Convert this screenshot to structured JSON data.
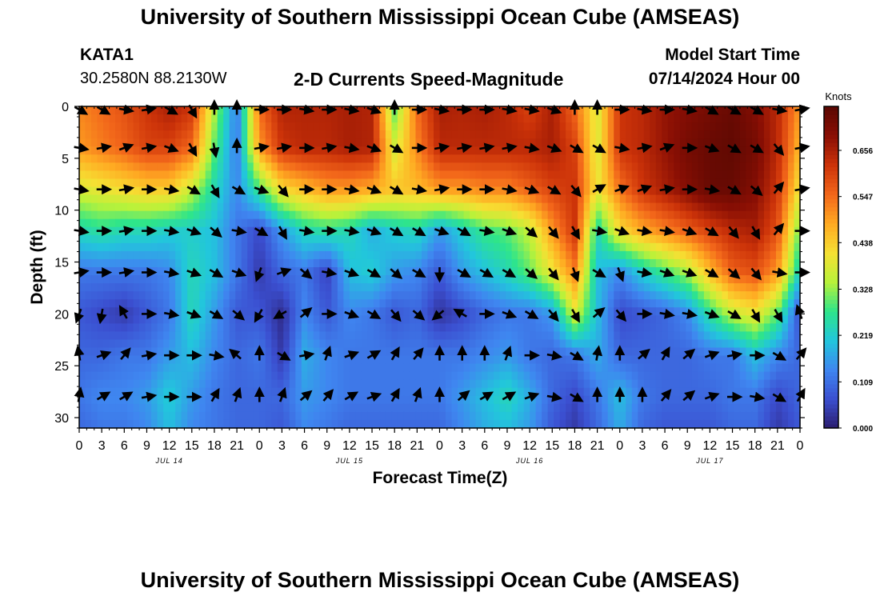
{
  "header": {
    "title_top": "University of Southern Mississippi Ocean Cube (AMSEAS)",
    "title_bottom": "University of Southern Mississippi Ocean Cube (AMSEAS)",
    "station_id": "KATA1",
    "coordinates": "30.2580N  88.2130W",
    "plot_title": "2-D Currents Speed-Magnitude",
    "model_start_label": "Model Start Time",
    "model_start_value": "07/14/2024 Hour 00"
  },
  "colors": {
    "palette": [
      "#2b1d6e",
      "#3b4fd0",
      "#3f86f0",
      "#22c6dc",
      "#2ee58a",
      "#b8f23a",
      "#f6e033",
      "#ffaa22",
      "#f2661a",
      "#cc3309",
      "#8a0f04",
      "#5a0802"
    ]
  },
  "chart_data": {
    "type": "heatmap",
    "title": "2-D Currents Speed-Magnitude",
    "xlabel": "Forecast Time(Z)",
    "ylabel": "Depth (ft)",
    "x_ticks": [
      "0",
      "3",
      "6",
      "9",
      "12",
      "15",
      "18",
      "21",
      "0",
      "3",
      "6",
      "9",
      "12",
      "15",
      "18",
      "21",
      "0",
      "3",
      "6",
      "9",
      "12",
      "15",
      "18",
      "21",
      "0",
      "3",
      "6",
      "9",
      "12",
      "15",
      "18",
      "21",
      "0"
    ],
    "x_range_hours": [
      0,
      96
    ],
    "day_labels": [
      {
        "label": "JUL 14",
        "hour": 12
      },
      {
        "label": "JUL 15",
        "hour": 36
      },
      {
        "label": "JUL 16",
        "hour": 60
      },
      {
        "label": "JUL 17",
        "hour": 84
      }
    ],
    "y_ticks": [
      "0",
      "5",
      "10",
      "15",
      "20",
      "25",
      "30"
    ],
    "y_range": [
      0,
      31
    ],
    "colorbar": {
      "label": "Knots",
      "ticks": [
        "0.000",
        "0.109",
        "0.219",
        "0.328",
        "0.438",
        "0.547",
        "0.656"
      ],
      "range": [
        0,
        0.76
      ]
    },
    "depths_ft": [
      0,
      4,
      8,
      12,
      16,
      20,
      24,
      28,
      31
    ],
    "speed_knots": [
      [
        0.52,
        0.55,
        0.58,
        0.62,
        0.66,
        0.62,
        0.35,
        0.12,
        0.55,
        0.65,
        0.65,
        0.65,
        0.66,
        0.65,
        0.3,
        0.55,
        0.66,
        0.65,
        0.66,
        0.64,
        0.6,
        0.66,
        0.55,
        0.38,
        0.62,
        0.64,
        0.68,
        0.7,
        0.72,
        0.74,
        0.7,
        0.64,
        0.5
      ],
      [
        0.5,
        0.53,
        0.56,
        0.6,
        0.6,
        0.55,
        0.3,
        0.12,
        0.5,
        0.62,
        0.64,
        0.64,
        0.66,
        0.65,
        0.38,
        0.52,
        0.64,
        0.64,
        0.64,
        0.64,
        0.64,
        0.66,
        0.6,
        0.38,
        0.62,
        0.64,
        0.68,
        0.72,
        0.74,
        0.75,
        0.72,
        0.64,
        0.46
      ],
      [
        0.38,
        0.4,
        0.42,
        0.44,
        0.44,
        0.36,
        0.24,
        0.14,
        0.28,
        0.42,
        0.46,
        0.5,
        0.5,
        0.48,
        0.45,
        0.46,
        0.5,
        0.5,
        0.52,
        0.52,
        0.56,
        0.6,
        0.62,
        0.4,
        0.54,
        0.62,
        0.66,
        0.7,
        0.74,
        0.74,
        0.7,
        0.62,
        0.4
      ],
      [
        0.24,
        0.26,
        0.24,
        0.24,
        0.22,
        0.22,
        0.2,
        0.12,
        0.06,
        0.16,
        0.24,
        0.26,
        0.24,
        0.18,
        0.22,
        0.24,
        0.16,
        0.22,
        0.28,
        0.3,
        0.36,
        0.5,
        0.62,
        0.24,
        0.42,
        0.48,
        0.52,
        0.56,
        0.6,
        0.64,
        0.66,
        0.58,
        0.3
      ],
      [
        0.12,
        0.12,
        0.12,
        0.12,
        0.14,
        0.24,
        0.2,
        0.12,
        0.04,
        0.1,
        0.12,
        0.05,
        0.2,
        0.22,
        0.16,
        0.14,
        0.08,
        0.16,
        0.2,
        0.24,
        0.3,
        0.4,
        0.52,
        0.2,
        0.14,
        0.22,
        0.28,
        0.34,
        0.46,
        0.56,
        0.58,
        0.5,
        0.22
      ],
      [
        0.08,
        0.06,
        0.04,
        0.08,
        0.12,
        0.24,
        0.16,
        0.08,
        0.08,
        0.02,
        0.14,
        0.08,
        0.14,
        0.12,
        0.08,
        0.1,
        0.03,
        0.06,
        0.1,
        0.12,
        0.12,
        0.16,
        0.38,
        0.2,
        0.06,
        0.08,
        0.1,
        0.14,
        0.26,
        0.36,
        0.4,
        0.3,
        0.06
      ],
      [
        0.1,
        0.1,
        0.12,
        0.12,
        0.16,
        0.2,
        0.14,
        0.1,
        0.12,
        0.04,
        0.18,
        0.14,
        0.12,
        0.12,
        0.12,
        0.12,
        0.12,
        0.12,
        0.14,
        0.16,
        0.12,
        0.1,
        0.12,
        0.18,
        0.1,
        0.1,
        0.1,
        0.1,
        0.12,
        0.12,
        0.2,
        0.14,
        0.1
      ],
      [
        0.12,
        0.14,
        0.14,
        0.16,
        0.22,
        0.16,
        0.12,
        0.1,
        0.1,
        0.1,
        0.16,
        0.14,
        0.12,
        0.12,
        0.12,
        0.12,
        0.12,
        0.16,
        0.2,
        0.24,
        0.18,
        0.1,
        0.06,
        0.12,
        0.2,
        0.12,
        0.1,
        0.1,
        0.1,
        0.12,
        0.12,
        0.06,
        0.1
      ],
      [
        0.1,
        0.12,
        0.12,
        0.14,
        0.2,
        0.14,
        0.12,
        0.1,
        0.1,
        0.08,
        0.14,
        0.12,
        0.1,
        0.1,
        0.1,
        0.1,
        0.1,
        0.14,
        0.18,
        0.2,
        0.16,
        0.08,
        0.04,
        0.1,
        0.18,
        0.1,
        0.08,
        0.08,
        0.08,
        0.1,
        0.1,
        0.04,
        0.08
      ]
    ],
    "vector_depths_ft": [
      0,
      4,
      8,
      12,
      16,
      20,
      24,
      28
    ],
    "vector_direction_deg": [
      [
        120,
        120,
        100,
        80,
        120,
        150,
        0,
        0,
        90,
        90,
        100,
        90,
        100,
        110,
        0,
        90,
        100,
        90,
        90,
        100,
        100,
        110,
        0,
        0,
        90,
        100,
        90,
        100,
        120,
        120,
        120,
        100,
        80
      ],
      [
        100,
        80,
        70,
        80,
        110,
        150,
        170,
        0,
        80,
        80,
        90,
        80,
        100,
        110,
        120,
        90,
        80,
        80,
        80,
        80,
        100,
        110,
        120,
        120,
        100,
        80,
        70,
        90,
        110,
        120,
        120,
        140,
        80
      ],
      [
        100,
        90,
        80,
        90,
        100,
        120,
        150,
        120,
        110,
        140,
        90,
        90,
        100,
        110,
        120,
        100,
        80,
        90,
        90,
        100,
        110,
        120,
        140,
        60,
        70,
        70,
        80,
        90,
        100,
        120,
        130,
        40,
        80
      ],
      [
        100,
        90,
        80,
        90,
        100,
        110,
        130,
        100,
        120,
        150,
        100,
        90,
        100,
        110,
        120,
        120,
        110,
        120,
        100,
        110,
        130,
        140,
        150,
        100,
        110,
        100,
        100,
        110,
        120,
        140,
        150,
        40,
        90
      ],
      [
        80,
        90,
        80,
        90,
        100,
        110,
        120,
        110,
        200,
        70,
        130,
        100,
        110,
        120,
        130,
        120,
        180,
        120,
        120,
        120,
        130,
        140,
        160,
        120,
        160,
        100,
        110,
        110,
        120,
        130,
        140,
        100,
        90
      ],
      [
        200,
        190,
        330,
        90,
        100,
        110,
        120,
        130,
        210,
        240,
        50,
        90,
        110,
        120,
        140,
        130,
        230,
        300,
        90,
        110,
        120,
        140,
        150,
        50,
        140,
        90,
        100,
        100,
        110,
        120,
        150,
        150,
        340
      ],
      [
        350,
        70,
        40,
        80,
        90,
        90,
        100,
        310,
        0,
        120,
        80,
        20,
        70,
        60,
        30,
        40,
        0,
        0,
        0,
        20,
        90,
        100,
        120,
        10,
        0,
        50,
        30,
        50,
        70,
        80,
        90,
        120,
        40
      ],
      [
        10,
        60,
        60,
        80,
        90,
        90,
        30,
        20,
        0,
        20,
        50,
        40,
        60,
        70,
        30,
        20,
        0,
        50,
        60,
        60,
        70,
        100,
        120,
        0,
        0,
        0,
        40,
        50,
        70,
        90,
        100,
        120,
        30
      ]
    ]
  }
}
